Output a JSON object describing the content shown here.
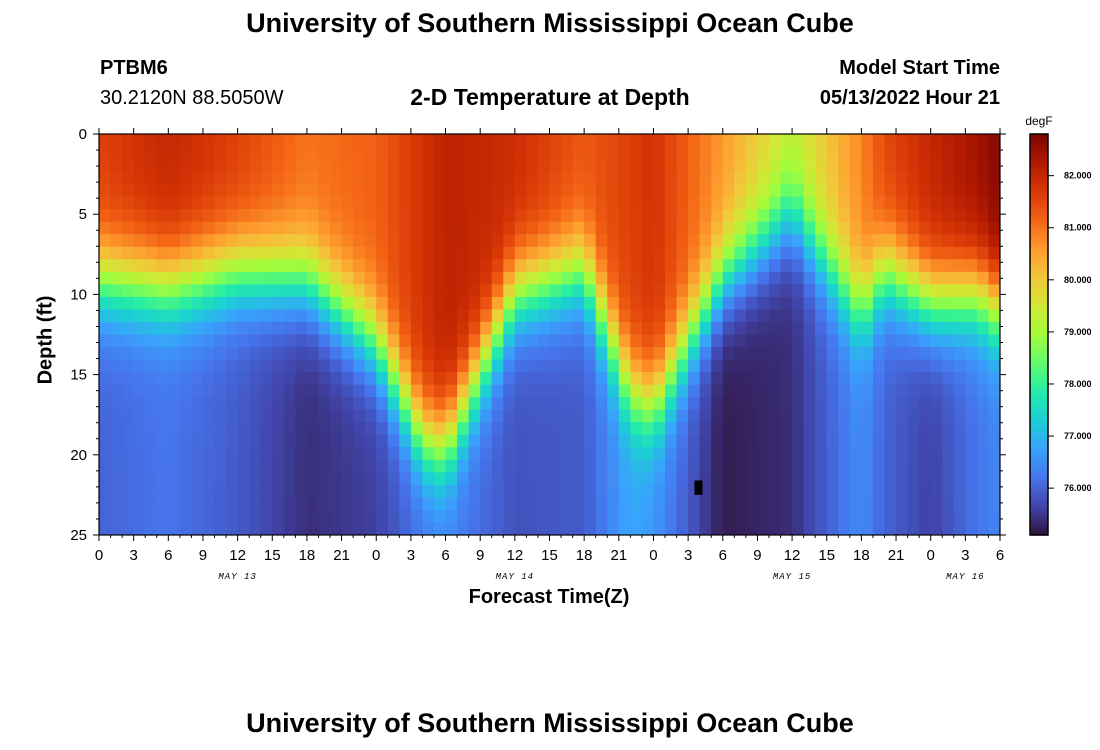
{
  "header": {
    "title": "University of Southern Mississippi Ocean Cube",
    "station_id": "PTBM6",
    "coordinates": "30.2120N  88.5050W",
    "subtitle": "2-D Temperature at Depth",
    "model_start_label": "Model Start Time",
    "model_start_value": "05/13/2022 Hour 21"
  },
  "footer": {
    "title": "University of Southern Mississippi Ocean Cube"
  },
  "colors": {
    "scale": [
      "#30123b",
      "#4145ab",
      "#4675ed",
      "#39a2fc",
      "#1bcfd4",
      "#24eca6",
      "#61fc6c",
      "#a4fc3b",
      "#d1e834",
      "#f3c63a",
      "#fe9b2d",
      "#f36315",
      "#d93806",
      "#b11901",
      "#7a0402"
    ]
  },
  "chart_data": {
    "type": "heatmap",
    "title": "2-D Temperature at Depth",
    "xlabel": "Forecast Time(Z)",
    "ylabel": "Depth (ft)",
    "colorbar_label": "degF",
    "depth_range": [
      0,
      25
    ],
    "y_ticks": [
      "0",
      "5",
      "10",
      "15",
      "20",
      "25"
    ],
    "y_tick_values": [
      0,
      5,
      10,
      15,
      20,
      25
    ],
    "x_range_hours": [
      0,
      78
    ],
    "x_tick_labels": [
      "0",
      "3",
      "6",
      "9",
      "12",
      "15",
      "18",
      "21",
      "0",
      "3",
      "6",
      "9",
      "12",
      "15",
      "18",
      "21",
      "0",
      "3",
      "6",
      "9",
      "12",
      "15",
      "18",
      "21",
      "0",
      "3",
      "6"
    ],
    "date_labels": [
      {
        "label": "MAY 13",
        "hour": 12
      },
      {
        "label": "MAY 14",
        "hour": 36
      },
      {
        "label": "MAY 15",
        "hour": 60
      },
      {
        "label": "MAY 16",
        "hour": 75
      }
    ],
    "colorbar_ticks": [
      "76.000",
      "77.000",
      "78.000",
      "79.000",
      "80.000",
      "81.000",
      "82.000"
    ],
    "colorbar_tick_values": [
      76,
      77,
      78,
      79,
      80,
      81,
      82
    ],
    "colorbar_range": [
      75.1,
      82.8
    ],
    "thermocline_hours": [
      0,
      6,
      12,
      18,
      24,
      28,
      30,
      36,
      42,
      46,
      48,
      54,
      60,
      66,
      68,
      72,
      76,
      78
    ],
    "thermocline_depth_ft": [
      9,
      9.5,
      8.5,
      9,
      13,
      19,
      19.5,
      10,
      8.5,
      16,
      17,
      9,
      5,
      11,
      8.5,
      10.5,
      10,
      11
    ],
    "surface_temp_degF": [
      81.6,
      82.0,
      81.6,
      81.0,
      81.2,
      81.8,
      82.1,
      81.9,
      81.3,
      81.6,
      81.8,
      80.6,
      79.3,
      80.8,
      81.5,
      82.0,
      82.4,
      82.7
    ],
    "bottom_temp_degF": [
      76.0,
      76.2,
      75.9,
      75.4,
      75.6,
      76.2,
      76.4,
      75.8,
      75.9,
      76.8,
      76.6,
      75.2,
      75.4,
      76.5,
      76.0,
      75.6,
      76.2,
      76.4
    ]
  }
}
